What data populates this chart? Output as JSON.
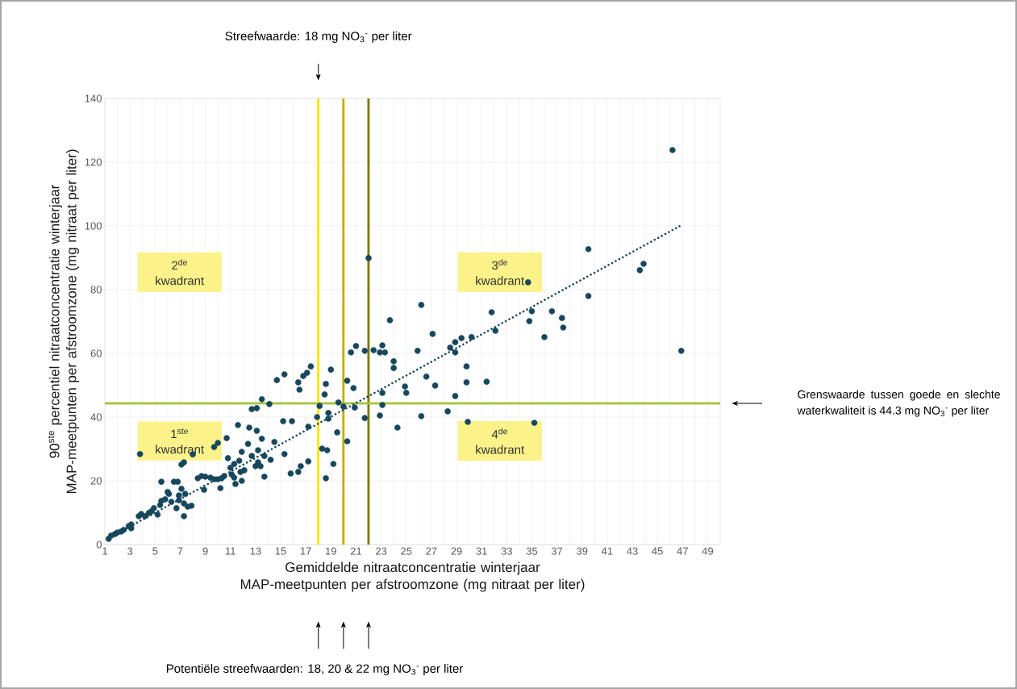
{
  "chart_data": {
    "type": "scatter",
    "xlabel": "Gemiddelde nitraatconcentratie winterjaar MAP-meetpunten per afstroomzone (mg nitraat per liter)",
    "ylabel": "90$^{ste}$ percentiel nitraatconcentratie winterjaar MAP-meetpunten per afstroomzone (mg nitraat per liter)",
    "xlim": [
      1,
      50
    ],
    "ylim": [
      0,
      140
    ],
    "xticks": [
      1,
      3,
      5,
      7,
      9,
      11,
      13,
      15,
      17,
      19,
      21,
      23,
      25,
      27,
      29,
      31,
      33,
      35,
      37,
      39,
      41,
      43,
      45,
      47,
      49
    ],
    "yticks": [
      0,
      20,
      40,
      60,
      80,
      100,
      120,
      140
    ],
    "grid": true,
    "marker": "circle",
    "series": [
      {
        "color": "#17475c",
        "x": [
          1.3,
          1.5,
          1.8,
          2.0,
          2.3,
          2.5,
          2.9,
          3.1,
          3.1,
          3.7,
          3.8,
          3.9,
          4.2,
          4.5,
          4.7,
          4.9,
          5.2,
          5.4,
          5.5,
          5.5,
          5.8,
          6.0,
          6.1,
          6.3,
          6.5,
          6.7,
          6.8,
          6.9,
          6.9,
          7.1,
          7.1,
          7.3,
          7.3,
          7.3,
          7.4,
          7.6,
          7.9,
          8.0,
          8.4,
          8.7,
          8.9,
          9.0,
          9.4,
          9.7,
          9.7,
          10.0,
          10.0,
          10.2,
          10.3,
          10.5,
          10.7,
          10.8,
          11.0,
          11.1,
          11.3,
          11.3,
          11.4,
          11.6,
          11.7,
          11.8,
          11.9,
          11.9,
          12.1,
          12.5,
          12.4,
          12.7,
          12.7,
          13.1,
          13.0,
          13.1,
          13.2,
          13.2,
          13.4,
          13.5,
          13.5,
          13.7,
          13.7,
          14.1,
          14.2,
          14.5,
          14.7,
          15.3,
          15.2,
          15.3,
          15.8,
          15.9,
          16.4,
          16.4,
          16.5,
          16.6,
          16.8,
          17.1,
          17.4,
          17.2,
          17.2,
          17.9,
          18.1,
          18.3,
          18.5,
          18.6,
          18.6,
          18.7,
          18.8,
          18.8,
          19.0,
          19.2,
          19.5,
          19.6,
          20.0,
          20.3,
          20.3,
          20.6,
          20.8,
          20.9,
          21.0,
          21.7,
          21.7,
          22.0,
          22.4,
          22.9,
          22.9,
          23.1,
          23.1,
          23.1,
          23.3,
          23.7,
          24.0,
          24.0,
          24.3,
          24.9,
          25.0,
          25.9,
          26.2,
          26.2,
          26.6,
          27.1,
          27.3,
          28.3,
          28.5,
          28.9,
          28.9,
          28.9,
          29.4,
          29.8,
          29.8,
          29.9,
          30.2,
          31.4,
          31.8,
          32.1,
          34.7,
          34.8,
          35.0,
          35.2,
          36.0,
          36.6,
          37.4,
          37.5,
          39.5,
          39.5,
          43.6,
          43.9,
          46.2,
          46.9
        ],
        "values": [
          1.8,
          2.8,
          3.3,
          3.8,
          4.1,
          4.6,
          5.8,
          6.3,
          5.1,
          8.9,
          28.4,
          9.6,
          8.9,
          9.9,
          10.4,
          11.4,
          9.4,
          12.4,
          13.7,
          19.7,
          14.2,
          16.5,
          15.9,
          13.4,
          19.7,
          11.4,
          19.7,
          15.4,
          13.9,
          25.1,
          17.5,
          8.9,
          25.8,
          12.9,
          15.9,
          11.9,
          12.2,
          28.3,
          20.8,
          21.5,
          17.2,
          21.3,
          21.0,
          20.5,
          30.6,
          31.9,
          20.5,
          17.7,
          20.8,
          21.5,
          33.4,
          27.1,
          24.1,
          22.0,
          21.0,
          25.3,
          19.0,
          37.5,
          26.3,
          22.8,
          29.1,
          20.0,
          23.3,
          36.7,
          31.6,
          42.5,
          27.8,
          42.8,
          24.6,
          35.7,
          29.6,
          25.8,
          24.6,
          45.6,
          33.2,
          27.8,
          21.3,
          44.1,
          26.6,
          32.2,
          51.6,
          53.4,
          38.7,
          28.4,
          22.3,
          38.7,
          50.9,
          22.8,
          48.6,
          24.6,
          52.9,
          53.9,
          55.9,
          37.0,
          26.1,
          40.0,
          43.5,
          30.1,
          47.1,
          50.4,
          20.8,
          29.6,
          41.3,
          39.5,
          54.9,
          25.3,
          35.2,
          44.6,
          43.3,
          51.4,
          32.4,
          60.3,
          49.1,
          43.0,
          62.3,
          60.8,
          39.7,
          89.9,
          61.0,
          60.3,
          40.5,
          62.5,
          47.6,
          43.8,
          60.3,
          70.4,
          57.5,
          55.4,
          36.7,
          49.6,
          47.6,
          60.8,
          75.2,
          40.3,
          52.7,
          66.1,
          49.9,
          41.8,
          61.8,
          46.6,
          63.5,
          60.3,
          64.8,
          55.9,
          50.9,
          38.5,
          65.1,
          51.1,
          72.9,
          67.1,
          82.3,
          70.1,
          73.2,
          38.2,
          65.1,
          73.2,
          71.1,
          68.1,
          92.7,
          78.0,
          86.1,
          88.1,
          123.8,
          60.8
        ]
      },
      {
        "type": "line",
        "color": "#17475c",
        "line_style": "dotted",
        "marker": "none",
        "x": [
          1.3,
          46.9
        ],
        "values": [
          2.0,
          100.2
        ]
      }
    ],
    "ref_lines": [
      {
        "axis": "x",
        "value": 18,
        "color": "#ffe600"
      },
      {
        "axis": "x",
        "value": 20,
        "color": "#c2b000"
      },
      {
        "axis": "x",
        "value": 22,
        "color": "#7f7800"
      },
      {
        "axis": "y",
        "value": 44.3,
        "color": "#a6c63c"
      }
    ],
    "annotations": [
      "2$^{de}$ kwadrant",
      "1$^{ste}$ kwadrant",
      "3$^{de}$ kwadrant",
      "4$^{de}$ kwadrant",
      "Streefwaarde: 18 mg NO$_{3}$$^{-}$ per liter",
      "Grenswaarde tussen goede en slechte waterkwaliteit is 44.3 mg NO$_{3}$$^{-}$ per liter",
      "Potentiële streefwaarden: 18, 20 & 22 mg NO$_{3}$$^{-}$ per liter"
    ]
  }
}
